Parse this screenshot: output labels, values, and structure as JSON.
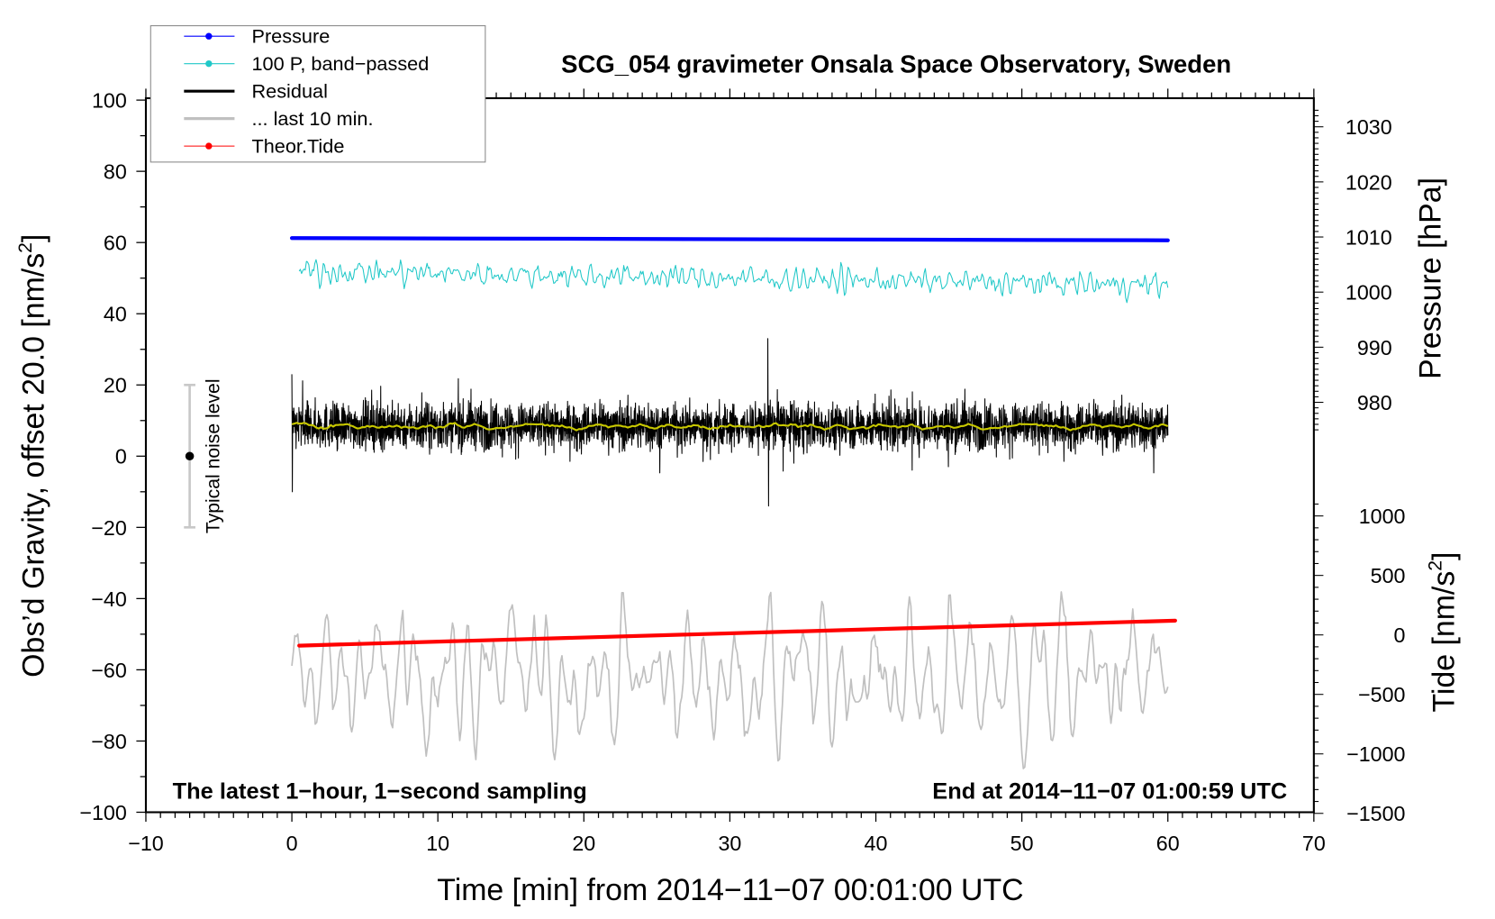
{
  "chart_data": {
    "type": "line",
    "title": "SCG_054 gravimeter Onsala Space Observatory, Sweden",
    "xlabel": "Time [min] from 2014−11−07 00:01:00 UTC",
    "ylabel": {
      "main": "Obs’d Gravity, offset 20.0 [nm/s",
      "sup": "2",
      "end": "]"
    },
    "y2label": "Pressure [hPa]",
    "y3label": {
      "main": "Tide [nm/s",
      "sup": "2",
      "end": "]"
    },
    "xlim": [
      -10,
      70
    ],
    "ylim": [
      -100,
      100
    ],
    "y2lim": [
      975,
      1035
    ],
    "y3lim": [
      -1500,
      1100
    ],
    "xticks": [
      "−10",
      "0",
      "10",
      "20",
      "30",
      "40",
      "50",
      "60",
      "70"
    ],
    "yticks": [
      "100",
      "80",
      "60",
      "40",
      "20",
      "0",
      "−20",
      "−40",
      "−60",
      "−80",
      "−100"
    ],
    "y2ticks": [
      "1030",
      "1020",
      "1010",
      "1000",
      "990",
      "980"
    ],
    "y3ticks": [
      "1000",
      "500",
      "0",
      "−500",
      "−1000",
      "−1500"
    ],
    "grid": false,
    "legend_position": "top-left",
    "legend": [
      {
        "label": "Pressure",
        "color": "#0000ff",
        "marker": true
      },
      {
        "label": "100 P, band−passed",
        "color": "#20c8c8",
        "marker": true
      },
      {
        "label": "Residual",
        "color": "#000000",
        "marker": false
      },
      {
        "label": "... last 10 min.",
        "color": "#c0c0c0",
        "marker": false
      },
      {
        "label": "Theor.Tide",
        "color": "#ff0000",
        "marker": true
      }
    ],
    "series": [
      {
        "name": "Pressure",
        "axis": "pressure_hPa",
        "t": [
          0,
          60
        ],
        "values": [
          1009.8,
          1009.4
        ],
        "color": "#0000ff"
      },
      {
        "name": "100 P, band-passed",
        "axis": "gravity",
        "t": [
          0.5,
          60
        ],
        "mean": [
          52,
          48
        ],
        "amplitude": 3,
        "color": "#20c8c8"
      },
      {
        "name": "Residual",
        "axis": "gravity",
        "t": [
          0,
          60
        ],
        "mean": 8.5,
        "amplitude": 10,
        "spikes": [
          {
            "t": 0,
            "max": 23,
            "min": -10
          },
          {
            "t": 32.6,
            "max": 33,
            "min": -14
          }
        ],
        "color": "#000000"
      },
      {
        "name": "Residual smoothed",
        "axis": "gravity",
        "t": [
          0,
          60
        ],
        "mean": 8.5,
        "color": "#c8c800"
      },
      {
        "name": "... last 10 min.",
        "axis": "gravity",
        "t": [
          0,
          60
        ],
        "mean": -62,
        "amplitude": 10,
        "color": "#c0c0c0"
      },
      {
        "name": "Theor.Tide",
        "axis": "tide_nm_s2",
        "t": [
          0.5,
          60.5
        ],
        "values": [
          -90,
          120
        ],
        "color": "#ff0000"
      }
    ],
    "noise_bar": {
      "label": "Typical noise level",
      "t": -7,
      "center": 0,
      "half_range": 20
    },
    "annotations": {
      "left": "The latest 1−hour, 1−second sampling",
      "right": "End at 2014−11−07 01:00:59 UTC"
    }
  }
}
